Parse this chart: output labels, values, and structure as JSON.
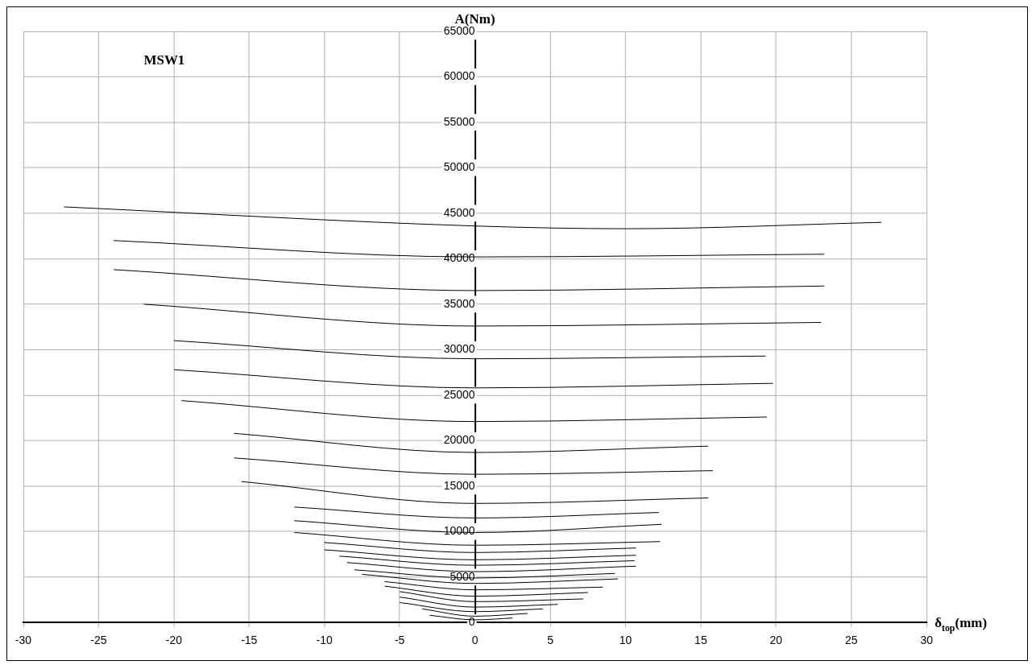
{
  "chart_data": {
    "type": "line",
    "xlabel": "δ$_{top}$(mm)",
    "ylabel": "A(Nm)",
    "annotations": [
      "MSW1"
    ],
    "xlim": [
      -30,
      30
    ],
    "xticks": [
      -30,
      -25,
      -20,
      -15,
      -10,
      -5,
      0,
      5,
      10,
      15,
      20,
      25,
      30
    ],
    "ylim": [
      0,
      65000
    ],
    "yticks": [
      0,
      5000,
      10000,
      15000,
      20000,
      25000,
      30000,
      35000,
      40000,
      45000,
      50000,
      55000,
      60000,
      65000
    ],
    "grid": true,
    "legend": false,
    "marker": "none",
    "line_style": "solid",
    "series": [
      {
        "color": "#000000",
        "x": [
          -27.3,
          0,
          10,
          27
        ],
        "values": [
          45700,
          43600,
          43300,
          44000
        ]
      },
      {
        "color": "#000000",
        "x": [
          -24,
          0,
          23.2
        ],
        "values": [
          42000,
          40200,
          40500
        ]
      },
      {
        "color": "#000000",
        "x": [
          -24,
          0,
          23.2
        ],
        "values": [
          38800,
          36500,
          37000
        ]
      },
      {
        "color": "#000000",
        "x": [
          -22,
          0,
          23
        ],
        "values": [
          35000,
          32600,
          33000
        ]
      },
      {
        "color": "#000000",
        "x": [
          -20,
          0,
          19.3
        ],
        "values": [
          31000,
          29000,
          29300
        ]
      },
      {
        "color": "#000000",
        "x": [
          -20,
          0,
          19.8
        ],
        "values": [
          27800,
          25800,
          26300
        ]
      },
      {
        "color": "#000000",
        "x": [
          -19.5,
          0,
          19.4
        ],
        "values": [
          24400,
          22100,
          22600
        ]
      },
      {
        "color": "#000000",
        "x": [
          -16,
          0,
          15.5
        ],
        "values": [
          20800,
          18700,
          19400
        ]
      },
      {
        "color": "#000000",
        "x": [
          -16,
          0,
          15.8
        ],
        "values": [
          18100,
          16300,
          16700
        ]
      },
      {
        "color": "#000000",
        "x": [
          -15.5,
          0,
          15.5
        ],
        "values": [
          15500,
          13100,
          13700
        ]
      },
      {
        "color": "#000000",
        "x": [
          -12,
          0,
          12.2
        ],
        "values": [
          12700,
          11500,
          12100
        ]
      },
      {
        "color": "#000000",
        "x": [
          -12,
          0,
          12.4
        ],
        "values": [
          11200,
          9900,
          10800
        ]
      },
      {
        "color": "#000000",
        "x": [
          -12,
          0,
          12.3
        ],
        "values": [
          9900,
          8500,
          8900
        ]
      },
      {
        "color": "#000000",
        "x": [
          -10,
          0,
          10.7
        ],
        "values": [
          8800,
          7700,
          8200
        ]
      },
      {
        "color": "#000000",
        "x": [
          -10,
          0,
          10.7
        ],
        "values": [
          8000,
          6900,
          7400
        ]
      },
      {
        "color": "#000000",
        "x": [
          -9,
          0,
          10.6
        ],
        "values": [
          7300,
          6300,
          6800
        ]
      },
      {
        "color": "#000000",
        "x": [
          -8.5,
          0,
          10.7
        ],
        "values": [
          6600,
          5600,
          6200
        ]
      },
      {
        "color": "#000000",
        "x": [
          -8,
          0,
          9.3
        ],
        "values": [
          5800,
          4900,
          5400
        ]
      },
      {
        "color": "#000000",
        "x": [
          -7.5,
          0,
          9.5
        ],
        "values": [
          5300,
          4300,
          4800
        ]
      },
      {
        "color": "#000000",
        "x": [
          -6,
          0,
          8.5
        ],
        "values": [
          4500,
          3600,
          3900
        ]
      },
      {
        "color": "#000000",
        "x": [
          -6,
          0,
          7.5
        ],
        "values": [
          4000,
          2900,
          3300
        ]
      },
      {
        "color": "#000000",
        "x": [
          -5,
          0,
          7.2
        ],
        "values": [
          3400,
          2300,
          2600
        ]
      },
      {
        "color": "#000000",
        "x": [
          -5,
          0,
          5.5
        ],
        "values": [
          2800,
          1700,
          2000
        ]
      },
      {
        "color": "#000000",
        "x": [
          -5,
          0,
          4.5
        ],
        "values": [
          2200,
          1200,
          1500
        ]
      },
      {
        "color": "#000000",
        "x": [
          -3.5,
          0,
          3.5
        ],
        "values": [
          1500,
          700,
          1000
        ]
      },
      {
        "color": "#000000",
        "x": [
          -3,
          0,
          2.5
        ],
        "values": [
          800,
          300,
          500
        ]
      }
    ]
  }
}
